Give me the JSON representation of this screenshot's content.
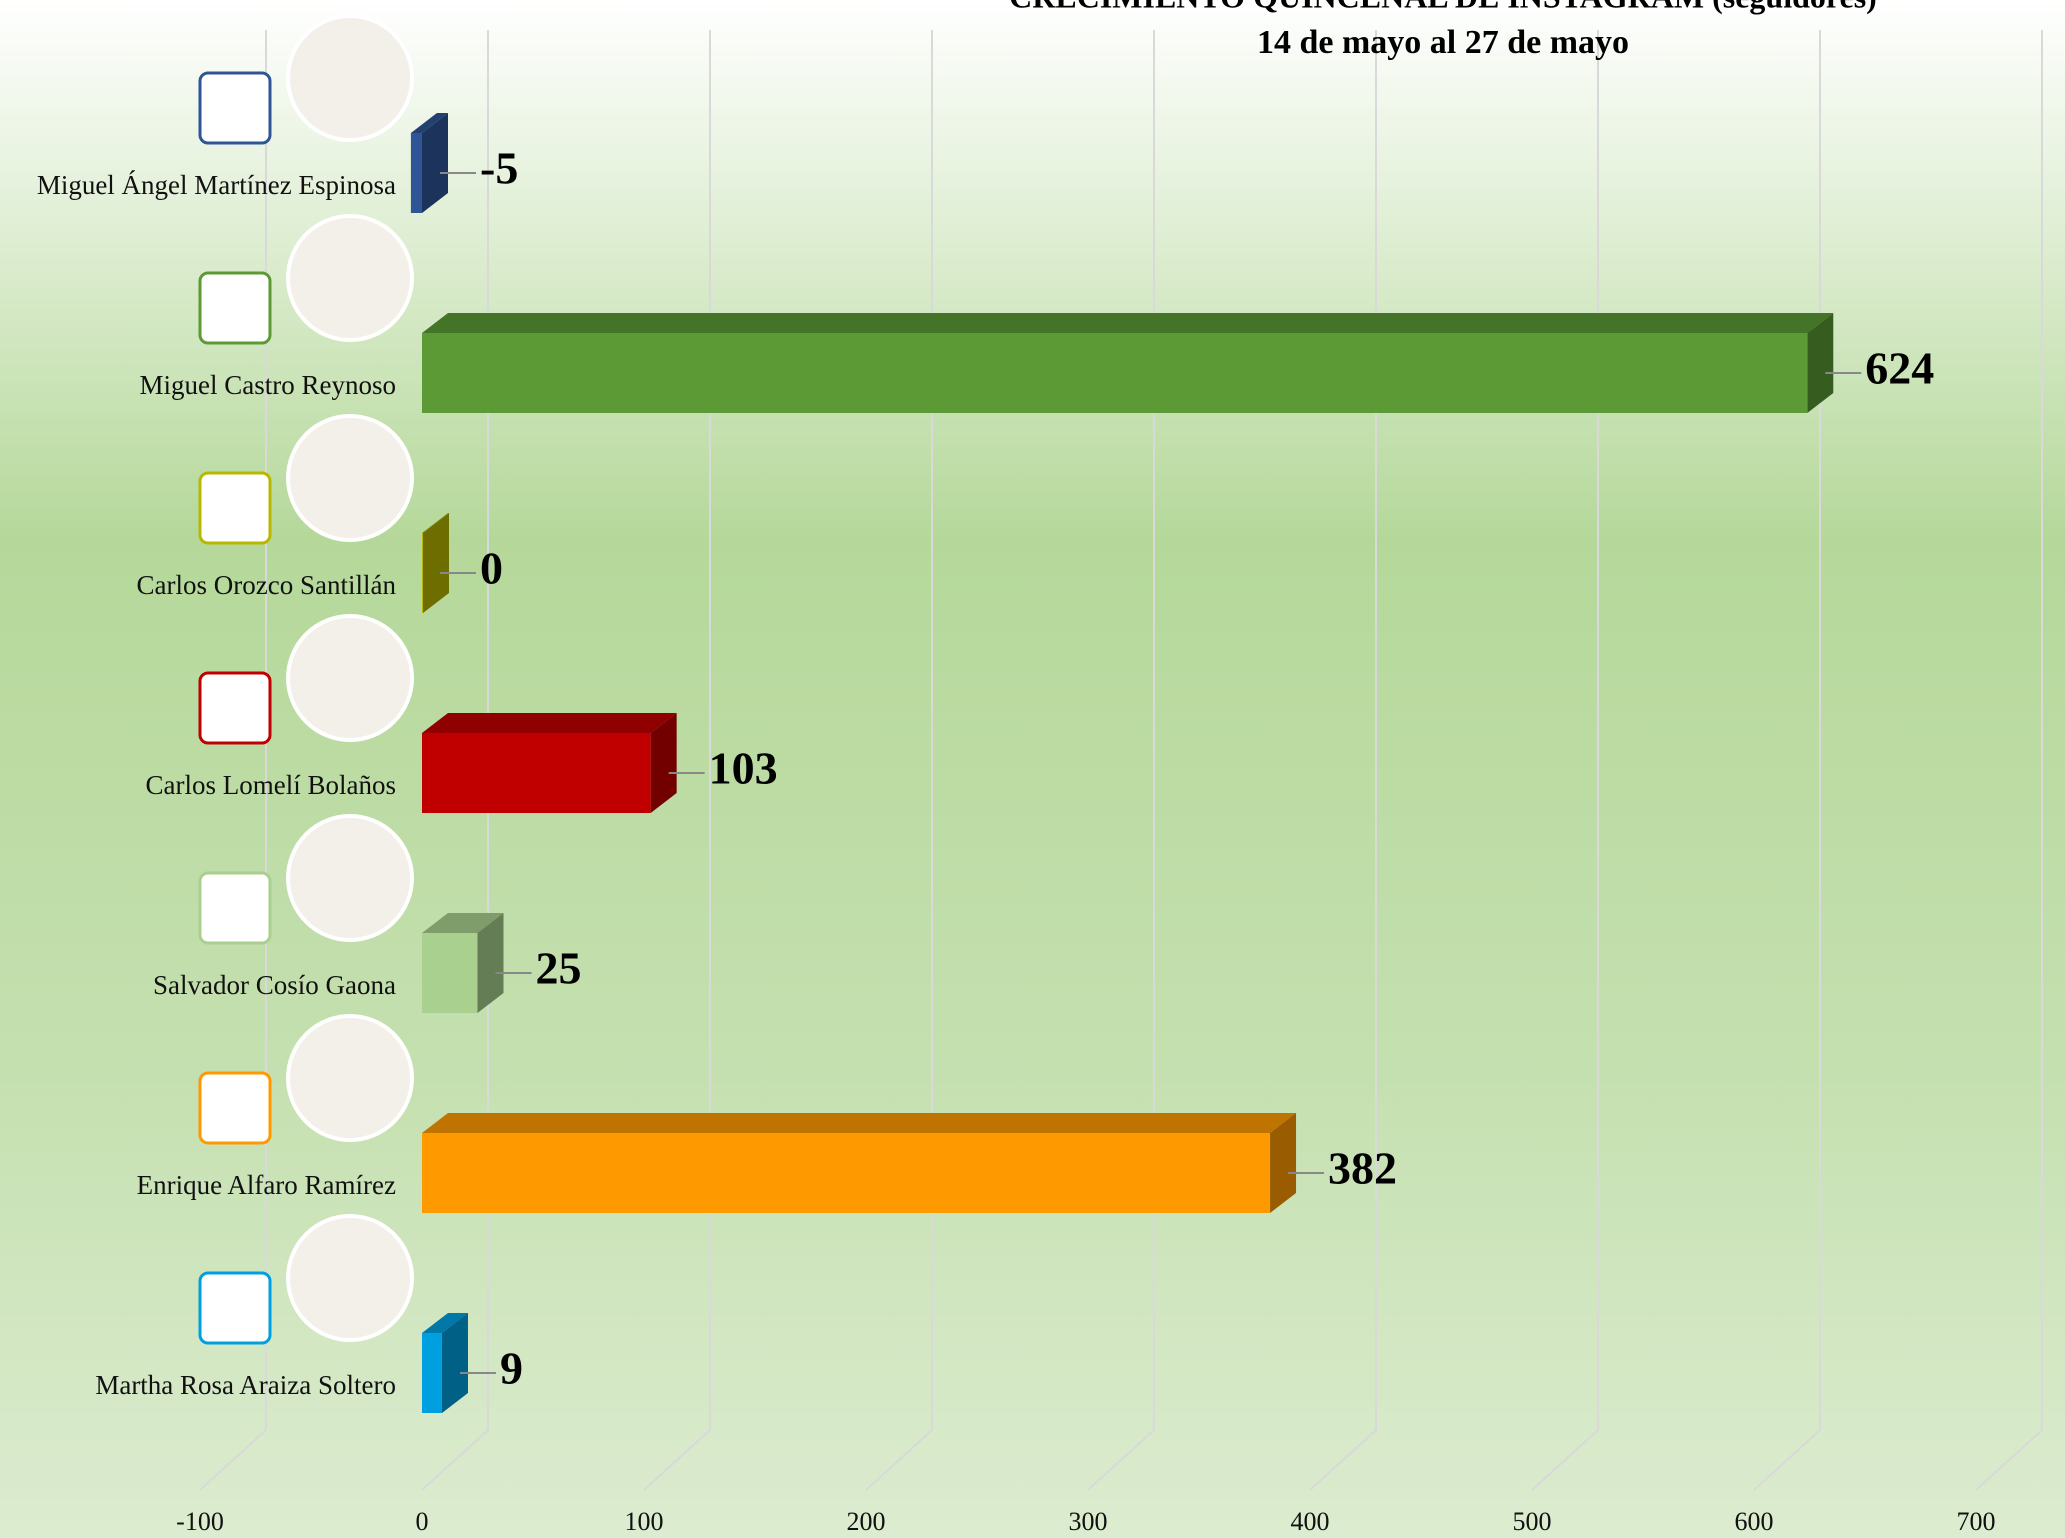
{
  "chart_data": {
    "type": "bar3d",
    "title": "CRECIMIENTO QUINCENAL DE INSTAGRAM (seguidores)",
    "subtitle": "14 de mayo al 27 de mayo",
    "categories": [
      "Miguel Ángel Martínez Espinosa",
      "Miguel Castro Reynoso",
      "Carlos Orozco Santillán",
      "Carlos Lomelí Bolaños",
      "Salvador Cosío Gaona",
      "Enrique Alfaro Ramírez",
      "Martha Rosa Araiza Soltero"
    ],
    "values": [
      -5,
      624,
      0,
      103,
      25,
      382,
      9
    ],
    "colors": [
      "#2f5597",
      "#5b9a35",
      "#b8b800",
      "#c00000",
      "#a9d08e",
      "#ff9900",
      "#00a0e0"
    ],
    "xlim": [
      -100,
      700
    ],
    "xticks": [
      -100,
      0,
      100,
      200,
      300,
      400,
      500,
      600,
      700
    ],
    "grid": true
  }
}
